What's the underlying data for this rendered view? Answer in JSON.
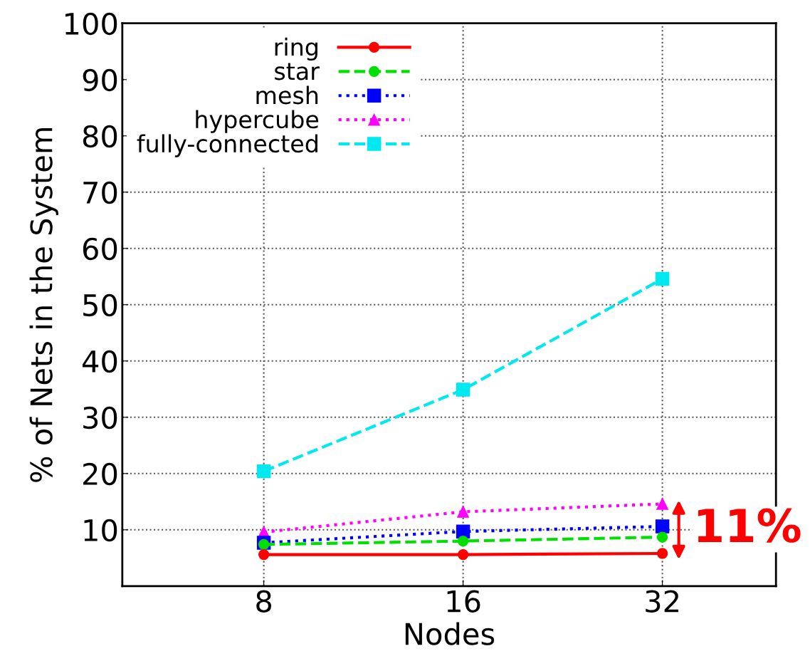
{
  "chart_data": {
    "type": "line",
    "xlabel": "Nodes",
    "ylabel": "% of Nets in the System",
    "categories": [
      "8",
      "16",
      "32"
    ],
    "series": [
      {
        "name": "ring",
        "color": "#ff0000",
        "values": [
          5.6,
          5.6,
          5.8
        ],
        "marker": "circle",
        "line_style": "solid"
      },
      {
        "name": "star",
        "color": "#00e000",
        "values": [
          7.4,
          8.0,
          8.7
        ],
        "marker": "circle",
        "line_style": "dashed"
      },
      {
        "name": "mesh",
        "color": "#0000ff",
        "values": [
          7.7,
          9.7,
          10.6
        ],
        "marker": "square",
        "line_style": "dotted"
      },
      {
        "name": "hypercube",
        "color": "#ff00ff",
        "values": [
          9.6,
          13.2,
          14.6
        ],
        "marker": "triangle",
        "line_style": "dotted"
      },
      {
        "name": "fully-connected",
        "color": "#00e8f0",
        "values": [
          20.4,
          34.9,
          54.6
        ],
        "marker": "square",
        "line_style": "dashed"
      }
    ],
    "ylim": [
      0,
      100
    ],
    "yticks": [
      10,
      20,
      30,
      40,
      50,
      60,
      70,
      80,
      90,
      100
    ],
    "grid": true,
    "legend": "top left",
    "annotations": [
      "11%"
    ]
  }
}
